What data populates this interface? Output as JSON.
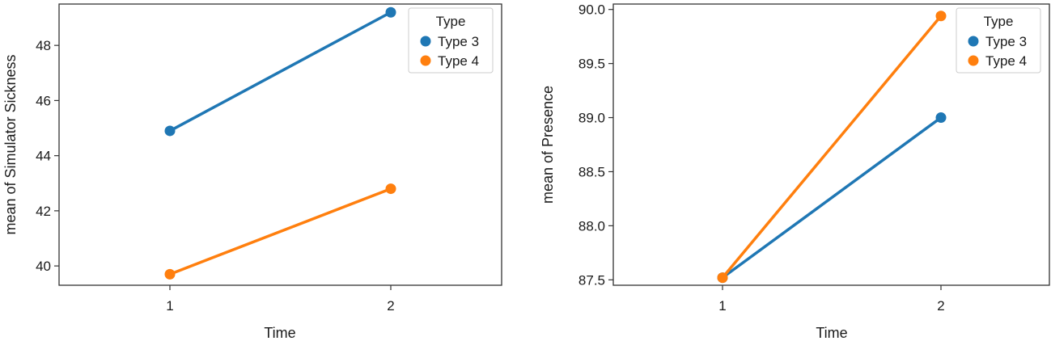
{
  "chart_data": [
    {
      "type": "line",
      "xlabel": "Time",
      "ylabel": "mean of Simulator Sickness",
      "categories": [
        "1",
        "2"
      ],
      "ylim": [
        39.3,
        49.5
      ],
      "yticks": [
        40,
        42,
        44,
        46,
        48
      ],
      "ytick_labels": [
        "40",
        "42",
        "44",
        "46",
        "48"
      ],
      "legend": {
        "title": "Type",
        "placement": "top-right"
      },
      "series": [
        {
          "name": "Type 3",
          "color": "#1f77b4",
          "values": [
            44.9,
            49.2
          ]
        },
        {
          "name": "Type 4",
          "color": "#ff7f0e",
          "values": [
            39.7,
            42.8
          ]
        }
      ]
    },
    {
      "type": "line",
      "xlabel": "Time",
      "ylabel": "mean of Presence",
      "categories": [
        "1",
        "2"
      ],
      "ylim": [
        87.45,
        90.05
      ],
      "yticks": [
        87.5,
        88.0,
        88.5,
        89.0,
        89.5,
        90.0
      ],
      "ytick_labels": [
        "87.5",
        "88.0",
        "88.5",
        "89.0",
        "89.5",
        "90.0"
      ],
      "legend": {
        "title": "Type",
        "placement": "top-right"
      },
      "series": [
        {
          "name": "Type 3",
          "color": "#1f77b4",
          "values": [
            87.52,
            89.0
          ]
        },
        {
          "name": "Type 4",
          "color": "#ff7f0e",
          "values": [
            87.52,
            89.94
          ]
        }
      ]
    }
  ]
}
